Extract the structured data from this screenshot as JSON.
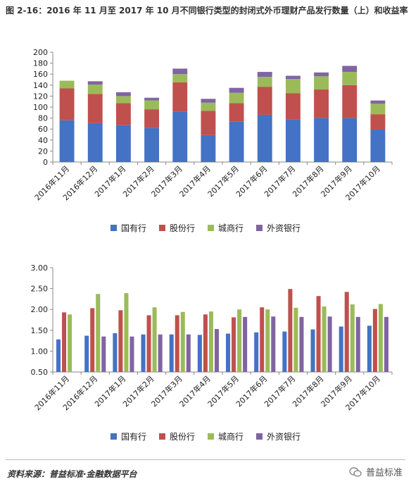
{
  "title": "图 2-16：2016 年 11 月至 2017 年 10 月不同银行类型的封闭式外币理财产品发行数量（上）和收益率（下）",
  "footer": "资料来源：普益标准·金融数据平台",
  "brand": "普益标准",
  "colors": {
    "guoyou": "#4472c4",
    "gufen": "#c0504d",
    "chengshang": "#9bbb59",
    "waizi": "#8064a2"
  },
  "chart_data": [
    {
      "type": "bar",
      "stacked": true,
      "categories": [
        "2016年11月",
        "2016年12月",
        "2017年1月",
        "2017年2月",
        "2017年3月",
        "2017年4月",
        "2017年5月",
        "2017年6月",
        "2017年7月",
        "2017年8月",
        "2017年9月",
        "2017年10月"
      ],
      "ylim": [
        0,
        200
      ],
      "yticks": [
        0,
        20,
        40,
        60,
        80,
        100,
        120,
        140,
        160,
        180,
        200
      ],
      "legend_position": "bottom",
      "series": [
        {
          "name": "国有行",
          "color_key": "guoyou",
          "values": [
            76,
            71,
            67,
            62,
            92,
            49,
            74,
            86,
            78,
            80,
            80,
            59
          ]
        },
        {
          "name": "股份行",
          "color_key": "gufen",
          "values": [
            58,
            53,
            40,
            34,
            53,
            44,
            33,
            51,
            47,
            52,
            60,
            28
          ]
        },
        {
          "name": "城商行",
          "color_key": "chengshang",
          "values": [
            14,
            17,
            13,
            16,
            15,
            15,
            19,
            18,
            26,
            24,
            24,
            19
          ]
        },
        {
          "name": "外资银行",
          "color_key": "waizi",
          "values": [
            0,
            6,
            7,
            5,
            10,
            7,
            9,
            9,
            6,
            7,
            11,
            6
          ]
        }
      ]
    },
    {
      "type": "bar",
      "stacked": false,
      "categories": [
        "2016年11月",
        "2016年12月",
        "2017年1月",
        "2017年2月",
        "2017年3月",
        "2017年4月",
        "2017年5月",
        "2017年6月",
        "2017年7月",
        "2017年8月",
        "2017年9月",
        "2017年10月"
      ],
      "ylim": [
        0.5,
        3.0
      ],
      "yticks": [
        "0.50",
        "1.00",
        "1.50",
        "2.00",
        "2.50",
        "3.00"
      ],
      "legend_position": "bottom",
      "series": [
        {
          "name": "国有行",
          "color_key": "guoyou",
          "values": [
            1.28,
            1.37,
            1.43,
            1.4,
            1.4,
            1.39,
            1.42,
            1.45,
            1.47,
            1.52,
            1.59,
            1.61
          ]
        },
        {
          "name": "股份行",
          "color_key": "gufen",
          "values": [
            1.93,
            2.03,
            1.98,
            1.86,
            1.86,
            1.88,
            1.81,
            2.05,
            2.49,
            2.32,
            2.42,
            2.01
          ]
        },
        {
          "name": "城商行",
          "color_key": "chengshang",
          "values": [
            1.88,
            2.37,
            2.39,
            2.05,
            1.94,
            1.95,
            2.0,
            2.0,
            2.04,
            2.07,
            2.12,
            2.13
          ]
        },
        {
          "name": "外资银行",
          "color_key": "waizi",
          "values": [
            null,
            1.35,
            1.35,
            1.4,
            1.4,
            1.53,
            1.82,
            1.83,
            1.82,
            1.83,
            1.82,
            1.82
          ]
        }
      ]
    }
  ]
}
